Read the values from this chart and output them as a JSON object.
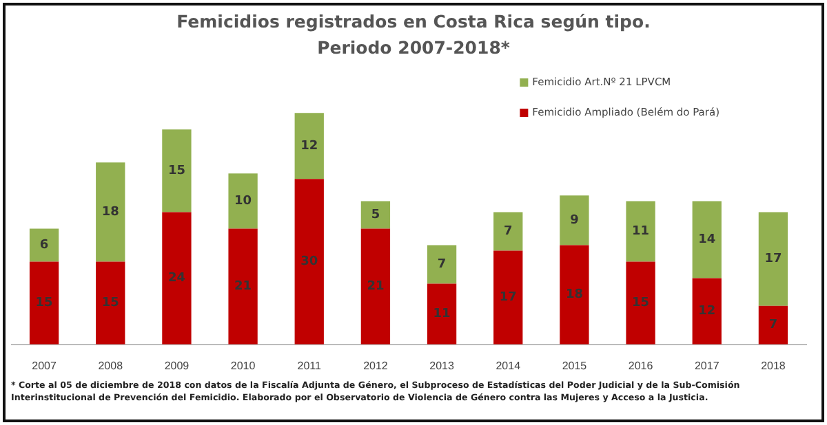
{
  "chart_data": {
    "type": "bar",
    "stacked": true,
    "title": "Femicidios registrados en Costa Rica según tipo.\nPeriodo 2007-2018*",
    "categories": [
      "2007",
      "2008",
      "2009",
      "2010",
      "2011",
      "2012",
      "2013",
      "2014",
      "2015",
      "2016",
      "2017",
      "2018"
    ],
    "series": [
      {
        "name": "Femicidio Ampliado (Belém do Pará)",
        "color": "#c00000",
        "values": [
          15,
          15,
          24,
          21,
          30,
          21,
          11,
          17,
          18,
          15,
          12,
          7
        ]
      },
      {
        "name": "Femicidio Art.Nº 21 LPVCM",
        "color": "#92b050",
        "values": [
          6,
          18,
          15,
          10,
          12,
          5,
          7,
          7,
          9,
          11,
          14,
          17
        ]
      }
    ],
    "data_labels": true,
    "legend": "top right",
    "annotations": [
      "* Corte al  05 de diciembre de 2018 con datos de la Fiscalía Adjunta de Género, el Subproceso de Estadísticas del Poder Judicial y de la Sub-Comisión Interinstitucional de Prevención del Femicidio. Elaborado por el Observatorio de Violencia de Género contra las Mujeres y Acceso a la Justicia."
    ]
  }
}
